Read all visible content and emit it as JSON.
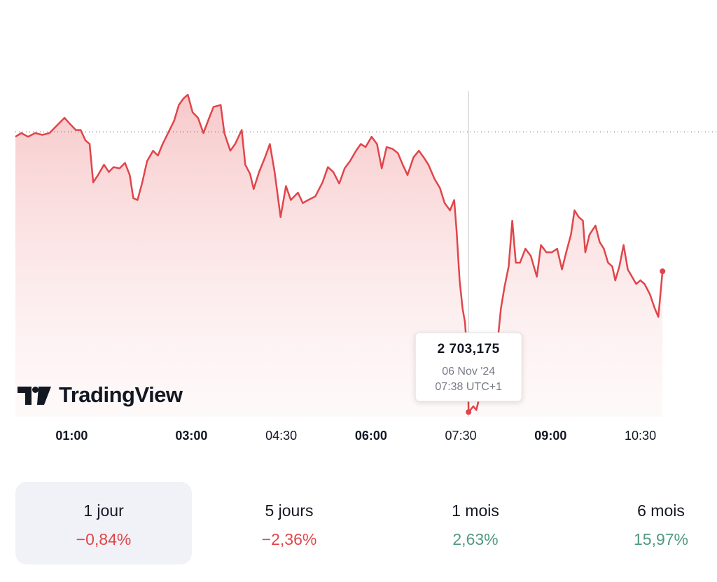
{
  "chart_data": {
    "type": "line",
    "x": [
      0.06,
      0.16,
      0.27,
      0.39,
      0.51,
      0.63,
      0.74,
      0.88,
      0.98,
      1.07,
      1.15,
      1.23,
      1.3,
      1.36,
      1.44,
      1.54,
      1.62,
      1.7,
      1.8,
      1.89,
      1.97,
      2.03,
      2.1,
      2.18,
      2.26,
      2.36,
      2.44,
      2.52,
      2.61,
      2.71,
      2.79,
      2.87,
      2.94,
      3.02,
      3.11,
      3.2,
      3.29,
      3.37,
      3.49,
      3.55,
      3.65,
      3.73,
      3.84,
      3.9,
      3.98,
      4.04,
      4.13,
      4.23,
      4.31,
      4.39,
      4.49,
      4.58,
      4.66,
      4.78,
      4.86,
      4.95,
      5.07,
      5.19,
      5.28,
      5.37,
      5.47,
      5.56,
      5.65,
      5.75,
      5.83,
      5.91,
      6.01,
      6.1,
      6.18,
      6.26,
      6.36,
      6.45,
      6.53,
      6.61,
      6.71,
      6.8,
      6.88,
      6.96,
      7.06,
      7.15,
      7.23,
      7.32,
      7.39,
      7.43,
      7.48,
      7.53,
      7.57,
      7.62,
      7.63,
      7.71,
      7.76,
      7.83,
      7.9,
      7.99,
      8.09,
      8.17,
      8.23,
      8.3,
      8.36,
      8.42,
      8.49,
      8.58,
      8.67,
      8.77,
      8.84,
      8.93,
      9.02,
      9.11,
      9.19,
      9.26,
      9.34,
      9.4,
      9.47,
      9.54,
      9.58,
      9.65,
      9.75,
      9.82,
      9.89,
      9.96,
      10.03,
      10.08,
      10.15,
      10.22,
      10.29,
      10.36,
      10.43,
      10.5,
      10.57,
      10.66,
      10.74,
      10.8,
      10.87
    ],
    "series": [
      {
        "color": "#e0454a",
        "values": [
          2748.4,
          2749.0,
          2748.4,
          2749.0,
          2748.7,
          2749.0,
          2750.1,
          2751.5,
          2750.4,
          2749.5,
          2749.5,
          2747.8,
          2747.2,
          2740.9,
          2742.1,
          2743.8,
          2742.6,
          2743.4,
          2743.2,
          2744.1,
          2742.1,
          2738.3,
          2738.0,
          2740.9,
          2744.4,
          2746.1,
          2745.3,
          2747.2,
          2749.0,
          2751.0,
          2753.6,
          2754.7,
          2755.3,
          2752.4,
          2751.5,
          2749.0,
          2751.3,
          2753.3,
          2753.6,
          2749.0,
          2746.1,
          2747.2,
          2749.5,
          2743.8,
          2742.3,
          2739.8,
          2742.6,
          2745.0,
          2747.2,
          2742.6,
          2735.2,
          2740.3,
          2738.0,
          2739.2,
          2737.5,
          2738.0,
          2738.6,
          2740.9,
          2743.4,
          2742.6,
          2740.7,
          2743.2,
          2744.4,
          2746.1,
          2747.2,
          2746.7,
          2748.4,
          2747.2,
          2743.2,
          2746.7,
          2746.4,
          2745.7,
          2743.8,
          2742.1,
          2745.0,
          2746.1,
          2745.0,
          2743.8,
          2741.5,
          2740.0,
          2737.5,
          2736.3,
          2738.0,
          2732.9,
          2724.8,
          2720.2,
          2717.9,
          2711.0,
          2703.175,
          2704.1,
          2703.5,
          2706.4,
          2706.4,
          2708.7,
          2712.2,
          2720.2,
          2723.7,
          2727.1,
          2734.6,
          2727.7,
          2727.7,
          2730.0,
          2728.8,
          2725.4,
          2730.6,
          2729.4,
          2729.4,
          2730.0,
          2726.6,
          2729.4,
          2732.3,
          2736.3,
          2735.2,
          2734.6,
          2729.4,
          2732.3,
          2733.8,
          2731.1,
          2730.0,
          2727.7,
          2727.1,
          2724.8,
          2727.1,
          2730.6,
          2726.6,
          2725.4,
          2724.2,
          2724.8,
          2724.2,
          2722.5,
          2720.2,
          2718.8,
          2726.3
        ]
      }
    ],
    "xlim": [
      0.06,
      11.78
    ],
    "ylim": [
      2702.4,
      2755.9
    ],
    "xticks": [
      {
        "value": 1,
        "label": "01:00",
        "bold": true
      },
      {
        "value": 3,
        "label": "03:00",
        "bold": true
      },
      {
        "value": 4.5,
        "label": "04:30"
      },
      {
        "value": 6,
        "label": "06:00",
        "bold": true
      },
      {
        "value": 7.5,
        "label": "07:30"
      },
      {
        "value": 9,
        "label": "09:00",
        "bold": true
      },
      {
        "value": 10.5,
        "label": "10:30"
      }
    ],
    "reference_line": 2749.2,
    "tooltip": {
      "x": 7.63,
      "value": 2703.175,
      "value_label": "2 703,175",
      "date": "06 Nov '24",
      "time": "07:38 UTC+1"
    },
    "logo": "TradingView"
  },
  "periods": [
    {
      "label": "1 jour",
      "change": "−0,84%",
      "color": "#e0454a",
      "selected": true
    },
    {
      "label": "5 jours",
      "change": "−2,36%",
      "color": "#e0454a"
    },
    {
      "label": "1 mois",
      "change": "2,63%",
      "color": "#4f9a80"
    },
    {
      "label": "6 mois",
      "change": "15,97%",
      "color": "#4f9a80"
    }
  ]
}
